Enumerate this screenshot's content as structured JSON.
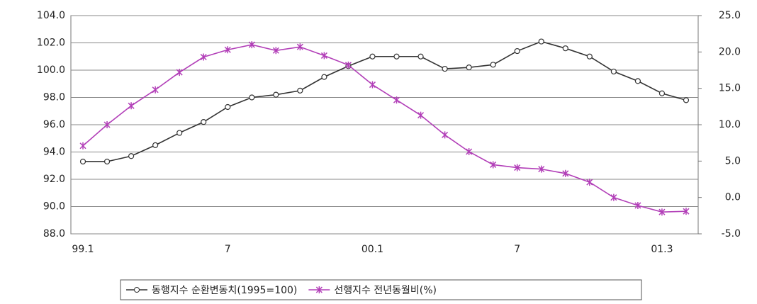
{
  "chart_data": {
    "type": "line",
    "categories": [
      "99.1",
      null,
      null,
      null,
      null,
      null,
      "7",
      null,
      null,
      null,
      null,
      null,
      "00.1",
      null,
      null,
      null,
      null,
      null,
      "7",
      null,
      null,
      null,
      null,
      null,
      "01.3",
      null
    ],
    "series": [
      {
        "name": "동행지수 순환변동치(1995=100)",
        "color": "#333333",
        "marker": "circle",
        "values": [
          93.3,
          93.3,
          93.7,
          94.5,
          95.4,
          96.2,
          97.3,
          98.0,
          98.2,
          98.5,
          99.5,
          100.3,
          101.0,
          101.0,
          101.0,
          100.1,
          100.2,
          100.4,
          101.4,
          102.1,
          101.6,
          101.0,
          99.9,
          99.2,
          98.3,
          97.8
        ]
      },
      {
        "name": "선행지수 전년동월비(%)",
        "color": "#b23fb8",
        "marker": "star",
        "axis": "y2",
        "values": [
          7.1,
          10.0,
          12.6,
          14.8,
          17.2,
          19.3,
          20.3,
          21.0,
          20.2,
          20.7,
          19.5,
          18.2,
          15.5,
          13.4,
          11.3,
          8.6,
          6.3,
          4.5,
          4.1,
          3.9,
          3.3,
          2.1,
          0.0,
          -1.1,
          -2.0,
          -1.9
        ]
      }
    ],
    "ylim": [
      88,
      104
    ],
    "yticks": [
      {
        "value": 88,
        "label": "88.0"
      },
      {
        "value": 90,
        "label": "90.0"
      },
      {
        "value": 92,
        "label": "92.0"
      },
      {
        "value": 94,
        "label": "94.0"
      },
      {
        "value": 96,
        "label": "96.0"
      },
      {
        "value": 98,
        "label": "98.0"
      },
      {
        "value": 100,
        "label": "100.0"
      },
      {
        "value": 102,
        "label": "102.0"
      },
      {
        "value": 104,
        "label": "104.0"
      }
    ],
    "y2lim": [
      -5,
      25
    ],
    "y2ticks": [
      {
        "value": -5,
        "label": "-5.0"
      },
      {
        "value": 0,
        "label": "0.0"
      },
      {
        "value": 5,
        "label": "5.0"
      },
      {
        "value": 10,
        "label": "10.0"
      },
      {
        "value": 15,
        "label": "15.0"
      },
      {
        "value": 20,
        "label": "20.0"
      },
      {
        "value": 25,
        "label": "25.0"
      }
    ],
    "grid": true
  }
}
